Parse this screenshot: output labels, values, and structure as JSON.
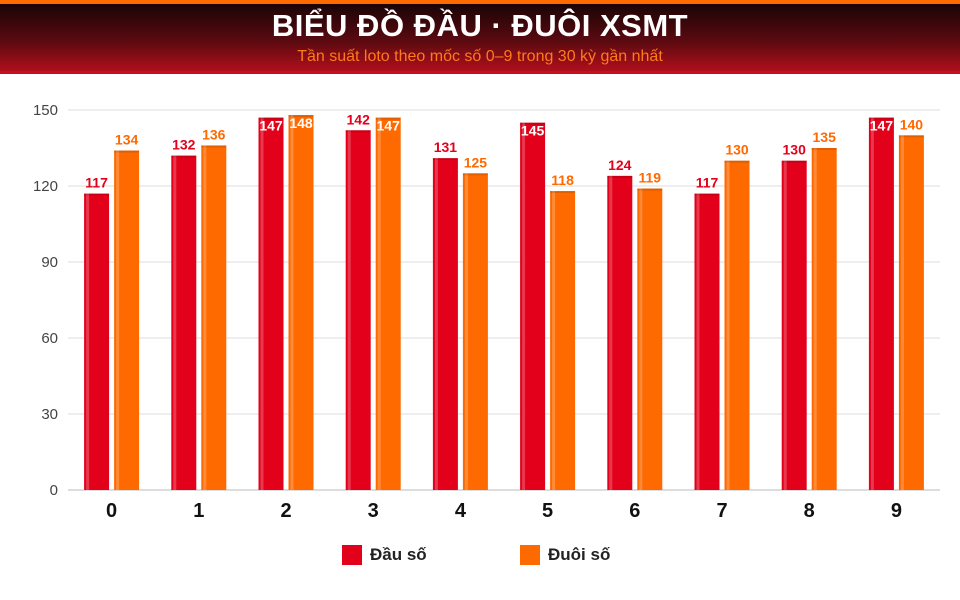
{
  "header": {
    "title": "BIỂU ĐỒ ĐẦU · ĐUÔI XSMT",
    "subtitle": "Tần suất loto theo mốc số 0–9 trong 30 kỳ gần nhất"
  },
  "colors": {
    "dau": "#e3001b",
    "duoi": "#ff6a00",
    "grid": "#dddddd",
    "tick": "#444444"
  },
  "chart_data": {
    "type": "bar",
    "title": "BIỂU ĐỒ ĐẦU · ĐUÔI XSMT",
    "subtitle": "Tần suất loto theo mốc số 0–9 trong 30 kỳ gần nhất",
    "xlabel": "",
    "ylabel": "",
    "categories": [
      "0",
      "1",
      "2",
      "3",
      "4",
      "5",
      "6",
      "7",
      "8",
      "9"
    ],
    "series": [
      {
        "name": "Đầu số",
        "values": [
          117,
          132,
          147,
          142,
          131,
          145,
          124,
          117,
          130,
          147
        ]
      },
      {
        "name": "Đuôi số",
        "values": [
          134,
          136,
          148,
          147,
          125,
          118,
          119,
          130,
          135,
          140
        ]
      }
    ],
    "ylim": [
      0,
      150
    ],
    "yticks": [
      0,
      30,
      60,
      90,
      120,
      150
    ],
    "grid": true,
    "legend": "bottom"
  }
}
